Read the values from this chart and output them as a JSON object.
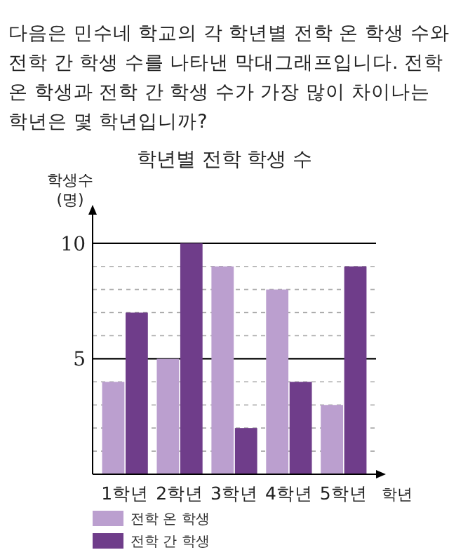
{
  "chart_data": {
    "type": "bar",
    "title": "학년별 전학 학생 수",
    "annotations": [
      "다음은 민수네 학교의 각 학년별 전학 온 학생 수와 전학 간 학생 수를 나타낸 막대그래프입니다. 전학 온 학생과 전학 간 학생 수가 가장 많이 차이나는 학년은 몇 학년입니까?"
    ],
    "xlabel": "학년",
    "ylabel": "학생수 (명)",
    "categories": [
      "1학년",
      "2학년",
      "3학년",
      "4학년",
      "5학년"
    ],
    "series": [
      {
        "name": "전학 온 학생",
        "color": "#bb9fcf",
        "values": [
          4,
          5,
          9,
          8,
          3
        ]
      },
      {
        "name": "전학 간 학생",
        "color": "#6f3d8a",
        "values": [
          7,
          10,
          2,
          4,
          9
        ]
      }
    ],
    "ylim": [
      0,
      11.3
    ],
    "yticks": [
      {
        "value": 1,
        "label": null
      },
      {
        "value": 2,
        "label": null
      },
      {
        "value": 3,
        "label": null
      },
      {
        "value": 4,
        "label": null
      },
      5,
      {
        "value": 6,
        "label": null
      },
      {
        "value": 7,
        "label": null
      },
      {
        "value": 8,
        "label": null
      },
      {
        "value": 9,
        "label": null
      },
      10
    ],
    "grid": true,
    "legend": "bottom left"
  }
}
